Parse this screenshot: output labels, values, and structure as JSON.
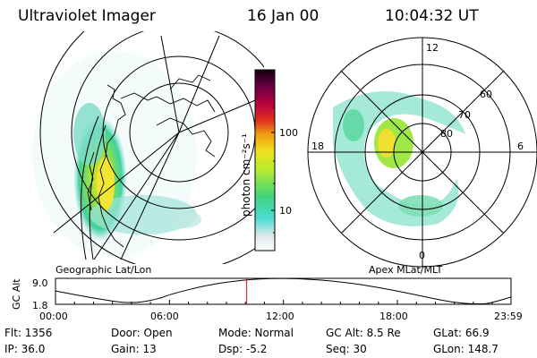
{
  "header": {
    "instrument": "Ultraviolet Imager",
    "date": "16 Jan 00",
    "time": "10:04:32 UT"
  },
  "left_panel": {
    "label": "Geographic Lat/Lon"
  },
  "right_panel": {
    "label": "Apex MLat/MLT",
    "mlt_labels": [
      "12",
      "18",
      "6",
      "0"
    ],
    "lat_labels": [
      "60",
      "70",
      "80"
    ]
  },
  "colorbar": {
    "unit_label": "photon cm⁻²s⁻¹",
    "tick_labels": [
      "100",
      "10"
    ]
  },
  "chart_data": {
    "type": "line",
    "title": "",
    "ylabel": "GC Alt",
    "y_tick_labels": [
      "9.0",
      "1.8"
    ],
    "x_tick_labels": [
      "00:00",
      "06:00",
      "12:00",
      "18:00",
      "23:59"
    ],
    "x": [
      "00:00",
      "02:00",
      "04:00",
      "05:30",
      "06:00",
      "08:00",
      "10:00",
      "11:30",
      "13:00",
      "15:00",
      "17:00",
      "19:00",
      "21:00",
      "22:30",
      "23:00",
      "23:59"
    ],
    "values": [
      5.5,
      3.5,
      1.9,
      3.4,
      4.5,
      7.2,
      8.6,
      9.0,
      8.9,
      8.1,
      6.5,
      4.4,
      2.2,
      1.8,
      2.3,
      3.8
    ],
    "ylim": [
      1.8,
      9.0
    ],
    "current_time": "10:04",
    "marker_color": "#e00000",
    "line_color": "#000000"
  },
  "status": {
    "flt": "Flt: 1356",
    "ip": "IP: 36.0",
    "door": "Door: Open",
    "gain": "Gain: 13",
    "mode": "Mode: Normal",
    "dsp": "Dsp:   -5.2",
    "gcalt": "GC Alt: 8.5 Re",
    "seq": "Seq: 30",
    "glat": "GLat:  66.9",
    "glon": "GLon: 148.7"
  }
}
